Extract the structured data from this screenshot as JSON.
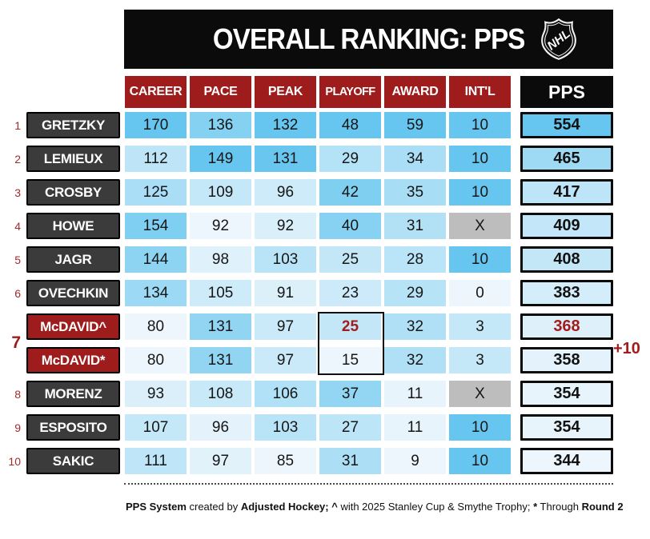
{
  "header": {
    "title": "OVERALL RANKING: PPS",
    "logo": "NHL"
  },
  "annotations": {
    "shared_rank": "7",
    "bonus": "+10"
  },
  "footer": {
    "segments": [
      {
        "text": "PPS System",
        "bold": true
      },
      {
        "text": " created by ",
        "bold": false
      },
      {
        "text": "Adjusted Hockey;",
        "bold": true
      },
      {
        "text": " ",
        "bold": false
      },
      {
        "text": "^",
        "bold": true
      },
      {
        "text": " with 2025 Stanley Cup & Smythe Trophy; ",
        "bold": false
      },
      {
        "text": "*",
        "bold": true
      },
      {
        "text": " Through ",
        "bold": false
      },
      {
        "text": "Round 2",
        "bold": true
      }
    ]
  },
  "colors": {
    "accent_red": "#9e1c1c",
    "name_dark": "#3b3b3b",
    "highlight_text": "#a31c1c",
    "scale_min": "#edf6fc",
    "scale_max": "#66c6ef",
    "gray_cell": "#bdbdbd",
    "bar_black": "#0b0b0b"
  },
  "chart_data": {
    "type": "table",
    "title": "OVERALL RANKING: PPS",
    "columns": [
      "CAREER",
      "PACE",
      "PEAK",
      "PLAYOFF",
      "AWARD",
      "INT'L",
      "PPS"
    ],
    "color_coding": "per-column blue heat scale, min value lightest to max value deepest; X = not applicable (gray)",
    "rows": [
      {
        "rank": "1",
        "player": "GRETZKY",
        "values": [
          170,
          136,
          132,
          48,
          59,
          10
        ],
        "pps": 554
      },
      {
        "rank": "2",
        "player": "LEMIEUX",
        "values": [
          112,
          149,
          131,
          29,
          34,
          10
        ],
        "pps": 465
      },
      {
        "rank": "3",
        "player": "CROSBY",
        "values": [
          125,
          109,
          96,
          42,
          35,
          10
        ],
        "pps": 417
      },
      {
        "rank": "4",
        "player": "HOWE",
        "values": [
          154,
          92,
          92,
          40,
          31,
          "X"
        ],
        "pps": 409
      },
      {
        "rank": "5",
        "player": "JAGR",
        "values": [
          144,
          98,
          103,
          25,
          28,
          10
        ],
        "pps": 408
      },
      {
        "rank": "6",
        "player": "OVECHKIN",
        "values": [
          134,
          105,
          91,
          23,
          29,
          0
        ],
        "pps": 383
      },
      {
        "rank": "7",
        "player": "McDAVID^",
        "values": [
          80,
          131,
          97,
          25,
          32,
          3
        ],
        "pps": 368,
        "hide_rank": true,
        "red_name": true,
        "red_playoff": true,
        "red_pps": true
      },
      {
        "rank": "7",
        "player": "McDAVID*",
        "values": [
          80,
          131,
          97,
          15,
          32,
          3
        ],
        "pps": 358,
        "hide_rank": true,
        "red_name": true
      },
      {
        "rank": "8",
        "player": "MORENZ",
        "values": [
          93,
          108,
          106,
          37,
          11,
          "X"
        ],
        "pps": 354
      },
      {
        "rank": "9",
        "player": "ESPOSITO",
        "values": [
          107,
          96,
          103,
          27,
          11,
          10
        ],
        "pps": 354
      },
      {
        "rank": "10",
        "player": "SAKIC",
        "values": [
          111,
          97,
          85,
          31,
          9,
          10
        ],
        "pps": 344
      }
    ]
  }
}
